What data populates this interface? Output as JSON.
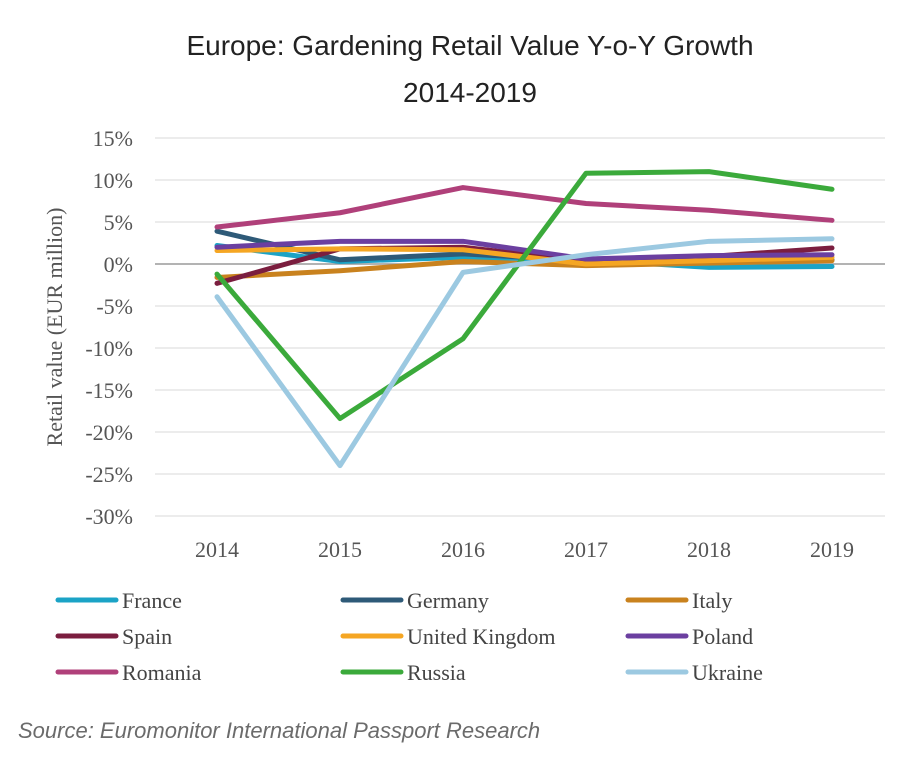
{
  "chart_data": {
    "type": "line",
    "title": "Europe: Gardening Retail Value Y-o-Y Growth",
    "subtitle": "2014-2019",
    "xlabel": "",
    "ylabel": "Retail value (EUR million)",
    "x": [
      "2014",
      "2015",
      "2016",
      "2017",
      "2018",
      "2019"
    ],
    "ylim": [
      -30,
      15
    ],
    "yticks": [
      15,
      10,
      5,
      0,
      -5,
      -10,
      -15,
      -20,
      -25,
      -30
    ],
    "ytick_labels": [
      "15%",
      "10%",
      "5%",
      "0%",
      "-5%",
      "-10%",
      "-15%",
      "-20%",
      "-25%",
      "-30%"
    ],
    "grid": "horizontal",
    "legend_position": "bottom",
    "series": [
      {
        "name": "France",
        "color": "#1BA3C6",
        "values": [
          2.2,
          0.3,
          0.8,
          0.5,
          -0.4,
          -0.3
        ]
      },
      {
        "name": "Germany",
        "color": "#2E5A78",
        "values": [
          3.9,
          0.5,
          1.2,
          0.4,
          0.3,
          0.5
        ]
      },
      {
        "name": "Italy",
        "color": "#C9821E",
        "values": [
          -1.6,
          -0.8,
          0.3,
          -0.2,
          0.1,
          0.4
        ]
      },
      {
        "name": "Spain",
        "color": "#7B1E3F",
        "values": [
          -2.3,
          1.8,
          2.0,
          0.3,
          0.9,
          1.9
        ]
      },
      {
        "name": "United Kingdom",
        "color": "#F5A623",
        "values": [
          1.6,
          1.8,
          1.7,
          0.0,
          0.4,
          0.8
        ]
      },
      {
        "name": "Poland",
        "color": "#6B3FA0",
        "values": [
          2.0,
          2.7,
          2.7,
          0.6,
          1.0,
          1.1
        ]
      },
      {
        "name": "Romania",
        "color": "#B0407A",
        "values": [
          4.4,
          6.1,
          9.1,
          7.2,
          6.4,
          5.2
        ]
      },
      {
        "name": "Russia",
        "color": "#3BAA3B",
        "values": [
          -1.2,
          -18.4,
          -8.9,
          10.8,
          11.0,
          8.9
        ]
      },
      {
        "name": "Ukraine",
        "color": "#9CC9E1",
        "values": [
          -3.9,
          -24.0,
          -1.0,
          1.1,
          2.7,
          3.0
        ]
      }
    ],
    "source": "Source: Euromonitor International Passport Research"
  }
}
